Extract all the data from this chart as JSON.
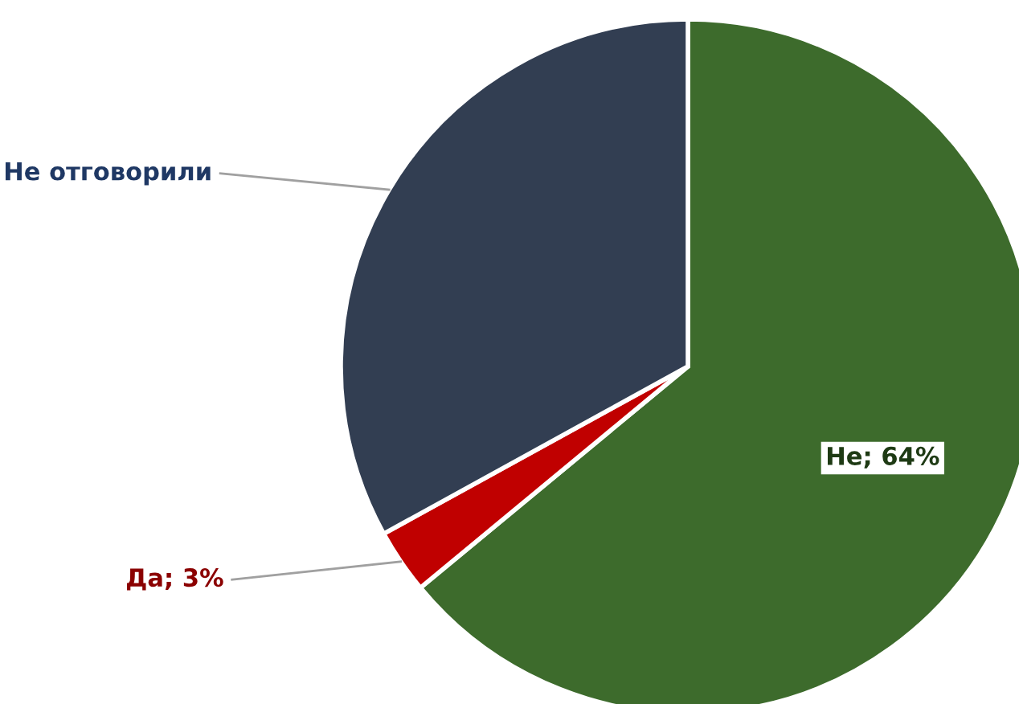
{
  "chart_data": {
    "type": "pie",
    "categories": [
      "Не",
      "Да",
      "Не отговорили"
    ],
    "values": [
      64,
      3,
      33
    ],
    "value_labels": [
      "64%",
      "3%",
      null
    ],
    "colors": [
      "#3d6b2c",
      "#c00000",
      "#323e52"
    ],
    "legend": false
  }
}
